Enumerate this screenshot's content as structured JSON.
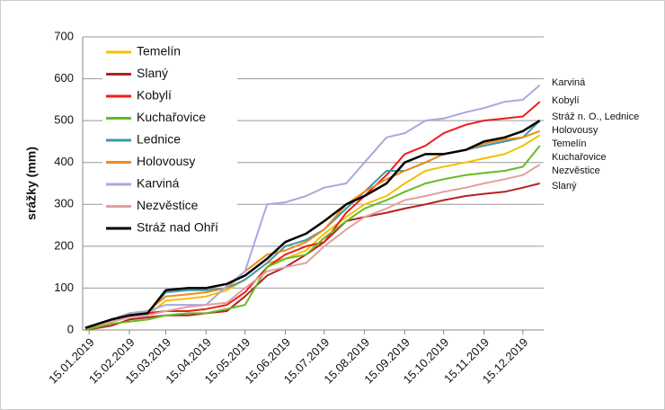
{
  "chart_data": {
    "type": "line",
    "y_label": "srážky (mm)",
    "x": [
      "12.01.2019",
      "01.02.2019",
      "15.02.2019",
      "01.03.2019",
      "15.03.2019",
      "01.04.2019",
      "15.04.2019",
      "01.05.2019",
      "15.05.2019",
      "01.06.2019",
      "15.06.2019",
      "01.07.2019",
      "15.07.2019",
      "01.08.2019",
      "15.08.2019",
      "01.09.2019",
      "15.09.2019",
      "01.10.2019",
      "15.10.2019",
      "01.11.2019",
      "15.11.2019",
      "01.12.2019",
      "15.12.2019",
      "28.12.2019"
    ],
    "xlim": [
      "10.01.2019",
      "31.12.2019"
    ],
    "xticks": [
      "15.01.2019",
      "15.02.2019",
      "15.03.2019",
      "15.04.2019",
      "15.05.2019",
      "15.06.2019",
      "15.07.2019",
      "15.08.2019",
      "15.09.2019",
      "15.10.2019",
      "15.11.2019",
      "15.12.2019"
    ],
    "ylim": [
      0,
      700
    ],
    "yticks": [
      0,
      100,
      200,
      300,
      400,
      500,
      600,
      700
    ],
    "grid": true,
    "legend": "upper left",
    "series": [
      {
        "name": "Temelín",
        "color": "#f5c000",
        "values": [
          5,
          20,
          30,
          35,
          70,
          75,
          80,
          95,
          120,
          160,
          170,
          190,
          230,
          270,
          300,
          320,
          350,
          380,
          390,
          400,
          410,
          420,
          440,
          465
        ]
      },
      {
        "name": "Slaný",
        "color": "#b22222",
        "values": [
          0,
          10,
          25,
          30,
          35,
          35,
          40,
          45,
          80,
          130,
          150,
          180,
          210,
          260,
          270,
          280,
          290,
          300,
          310,
          320,
          325,
          330,
          340,
          350
        ]
      },
      {
        "name": "Kobylí",
        "color": "#ee1c1c",
        "values": [
          0,
          25,
          35,
          40,
          45,
          45,
          50,
          60,
          90,
          150,
          180,
          200,
          210,
          280,
          320,
          370,
          420,
          440,
          470,
          490,
          500,
          505,
          510,
          545
        ]
      },
      {
        "name": "Kuchařovice",
        "color": "#66bb22",
        "values": [
          0,
          15,
          20,
          25,
          35,
          40,
          40,
          50,
          60,
          150,
          170,
          180,
          220,
          260,
          290,
          310,
          330,
          350,
          360,
          370,
          375,
          380,
          390,
          440
        ]
      },
      {
        "name": "Lednice",
        "color": "#3a9aa8",
        "values": [
          5,
          25,
          35,
          40,
          90,
          95,
          95,
          100,
          120,
          160,
          200,
          215,
          240,
          290,
          330,
          380,
          380,
          400,
          420,
          430,
          440,
          450,
          460,
          500
        ]
      },
      {
        "name": "Holovousy",
        "color": "#f08a1c",
        "values": [
          5,
          25,
          40,
          45,
          80,
          85,
          90,
          100,
          140,
          180,
          190,
          210,
          240,
          300,
          330,
          360,
          380,
          400,
          420,
          430,
          445,
          455,
          460,
          475
        ]
      },
      {
        "name": "Karviná",
        "color": "#a8a8e0",
        "values": [
          5,
          25,
          40,
          45,
          60,
          60,
          60,
          105,
          140,
          300,
          305,
          320,
          340,
          350,
          400,
          460,
          470,
          500,
          505,
          520,
          530,
          545,
          550,
          585
        ]
      },
      {
        "name": "Nezvěstice",
        "color": "#e0a0a0",
        "values": [
          5,
          20,
          30,
          35,
          45,
          55,
          60,
          65,
          100,
          140,
          150,
          160,
          200,
          240,
          270,
          290,
          310,
          320,
          330,
          340,
          350,
          360,
          370,
          395
        ]
      },
      {
        "name": "Stráž nad Ohří",
        "color": "#000000",
        "values": [
          5,
          25,
          35,
          40,
          95,
          100,
          100,
          110,
          130,
          170,
          210,
          230,
          260,
          300,
          320,
          350,
          400,
          420,
          420,
          430,
          450,
          460,
          475,
          500
        ]
      }
    ],
    "annotations": [
      "Karviná",
      "Kobylí",
      "Stráž n. O., Lednice",
      "Holovousy",
      "Temelín",
      "Kuchařovice",
      "Nezvěstice",
      "Slaný"
    ]
  }
}
